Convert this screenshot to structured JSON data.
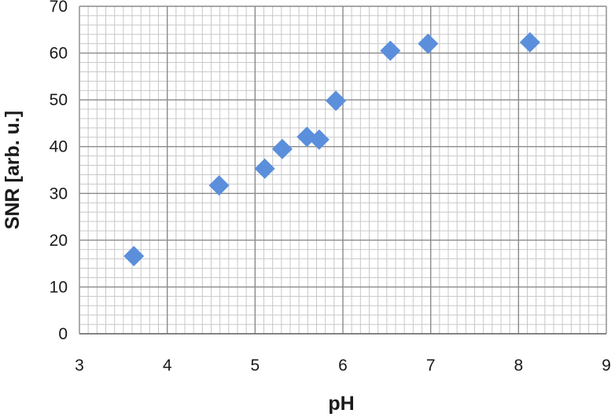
{
  "chart_data": {
    "type": "scatter",
    "title": "",
    "xlabel": "pH",
    "ylabel": "SNR [arb. u.]",
    "xlim": [
      3,
      9
    ],
    "ylim": [
      0,
      70
    ],
    "x_ticks": [
      3,
      4,
      5,
      6,
      7,
      8,
      9
    ],
    "y_ticks": [
      0,
      10,
      20,
      30,
      40,
      50,
      60,
      70
    ],
    "grid": true,
    "legend": "none",
    "marker": "diamond",
    "marker_color": "#5b8fdc",
    "grid_major_color": "#8a8a8a",
    "grid_minor_color": "#c8c8c8",
    "series": [
      {
        "points": [
          {
            "x": 3.62,
            "y": 16.6
          },
          {
            "x": 4.59,
            "y": 31.7
          },
          {
            "x": 5.11,
            "y": 35.3
          },
          {
            "x": 5.31,
            "y": 39.5
          },
          {
            "x": 5.59,
            "y": 42.1
          },
          {
            "x": 5.73,
            "y": 41.5
          },
          {
            "x": 5.92,
            "y": 49.8
          },
          {
            "x": 6.54,
            "y": 60.5
          },
          {
            "x": 6.97,
            "y": 62.0
          },
          {
            "x": 8.13,
            "y": 62.3
          }
        ]
      }
    ]
  }
}
